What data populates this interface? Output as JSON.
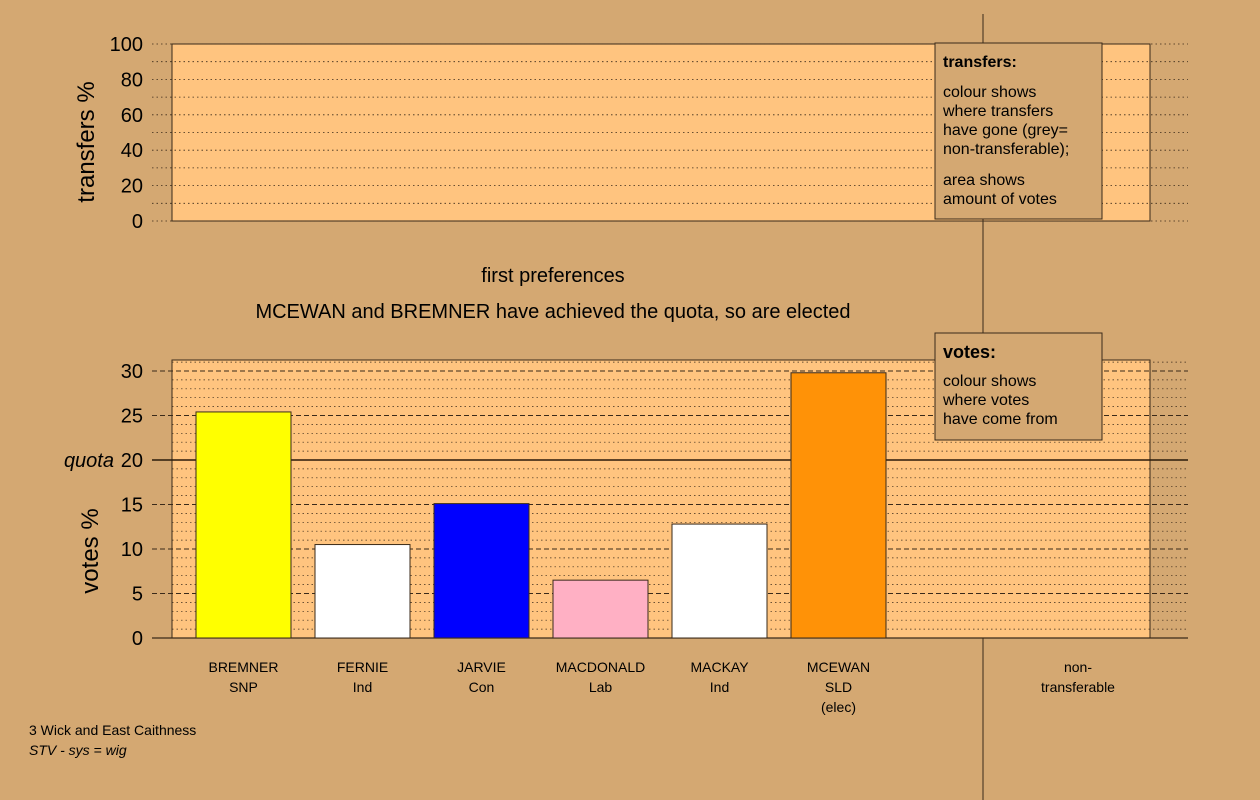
{
  "colors": {
    "background": "#d4a872",
    "plot_fill": "#ffc47f",
    "frame": "#3a2a1a",
    "legend_fill": "#d4a872",
    "non_transferable": "#999999"
  },
  "chart_data": [
    {
      "type": "bar",
      "subplot": "transfers",
      "ylabel": "transfers %",
      "ylim": [
        0,
        100
      ],
      "yticks": [
        0,
        20,
        40,
        60,
        80,
        100
      ],
      "grid": "dotted",
      "values": [],
      "legend": {
        "title": "transfers:",
        "lines": [
          "colour shows",
          "where transfers",
          "have gone (grey=",
          "non-transferable);"
        ],
        "lines2": [
          "area shows",
          "amount of votes"
        ],
        "position": "top-right"
      }
    },
    {
      "type": "bar",
      "subplot": "votes",
      "ylabel": "votes %",
      "ylim": [
        0,
        31.5
      ],
      "yticks": [
        0,
        5,
        10,
        15,
        20,
        25,
        30
      ],
      "grid": "dotted",
      "quota": {
        "value": 20,
        "label": "quota"
      },
      "categories": [
        "BREMNER",
        "FERNIE",
        "JARVIE",
        "MACDONALD",
        "MACKAY",
        "MCEWAN"
      ],
      "parties": [
        "SNP",
        "Ind",
        "Con",
        "Lab",
        "Ind",
        "SLD"
      ],
      "notes": [
        "",
        "",
        "",
        "",
        "",
        "(elec)"
      ],
      "values": [
        25.4,
        10.5,
        15.1,
        6.5,
        12.8,
        29.8
      ],
      "bar_colors": [
        "#ffff00",
        "#ffffff",
        "#0000ff",
        "#ffb0c4",
        "#ffffff",
        "#ff9207"
      ],
      "non_transferable_label": [
        "non-",
        "transferable"
      ],
      "legend": {
        "title": "votes:",
        "lines": [
          "colour shows",
          "where votes",
          "have come from"
        ],
        "position": "top-right"
      }
    }
  ],
  "titles": {
    "stage": "first preferences",
    "status": "MCEWAN and BREMNER have achieved the quota, so are elected"
  },
  "footer": {
    "constituency": "3 Wick and East Caithness",
    "system": "STV - sys = wig"
  }
}
